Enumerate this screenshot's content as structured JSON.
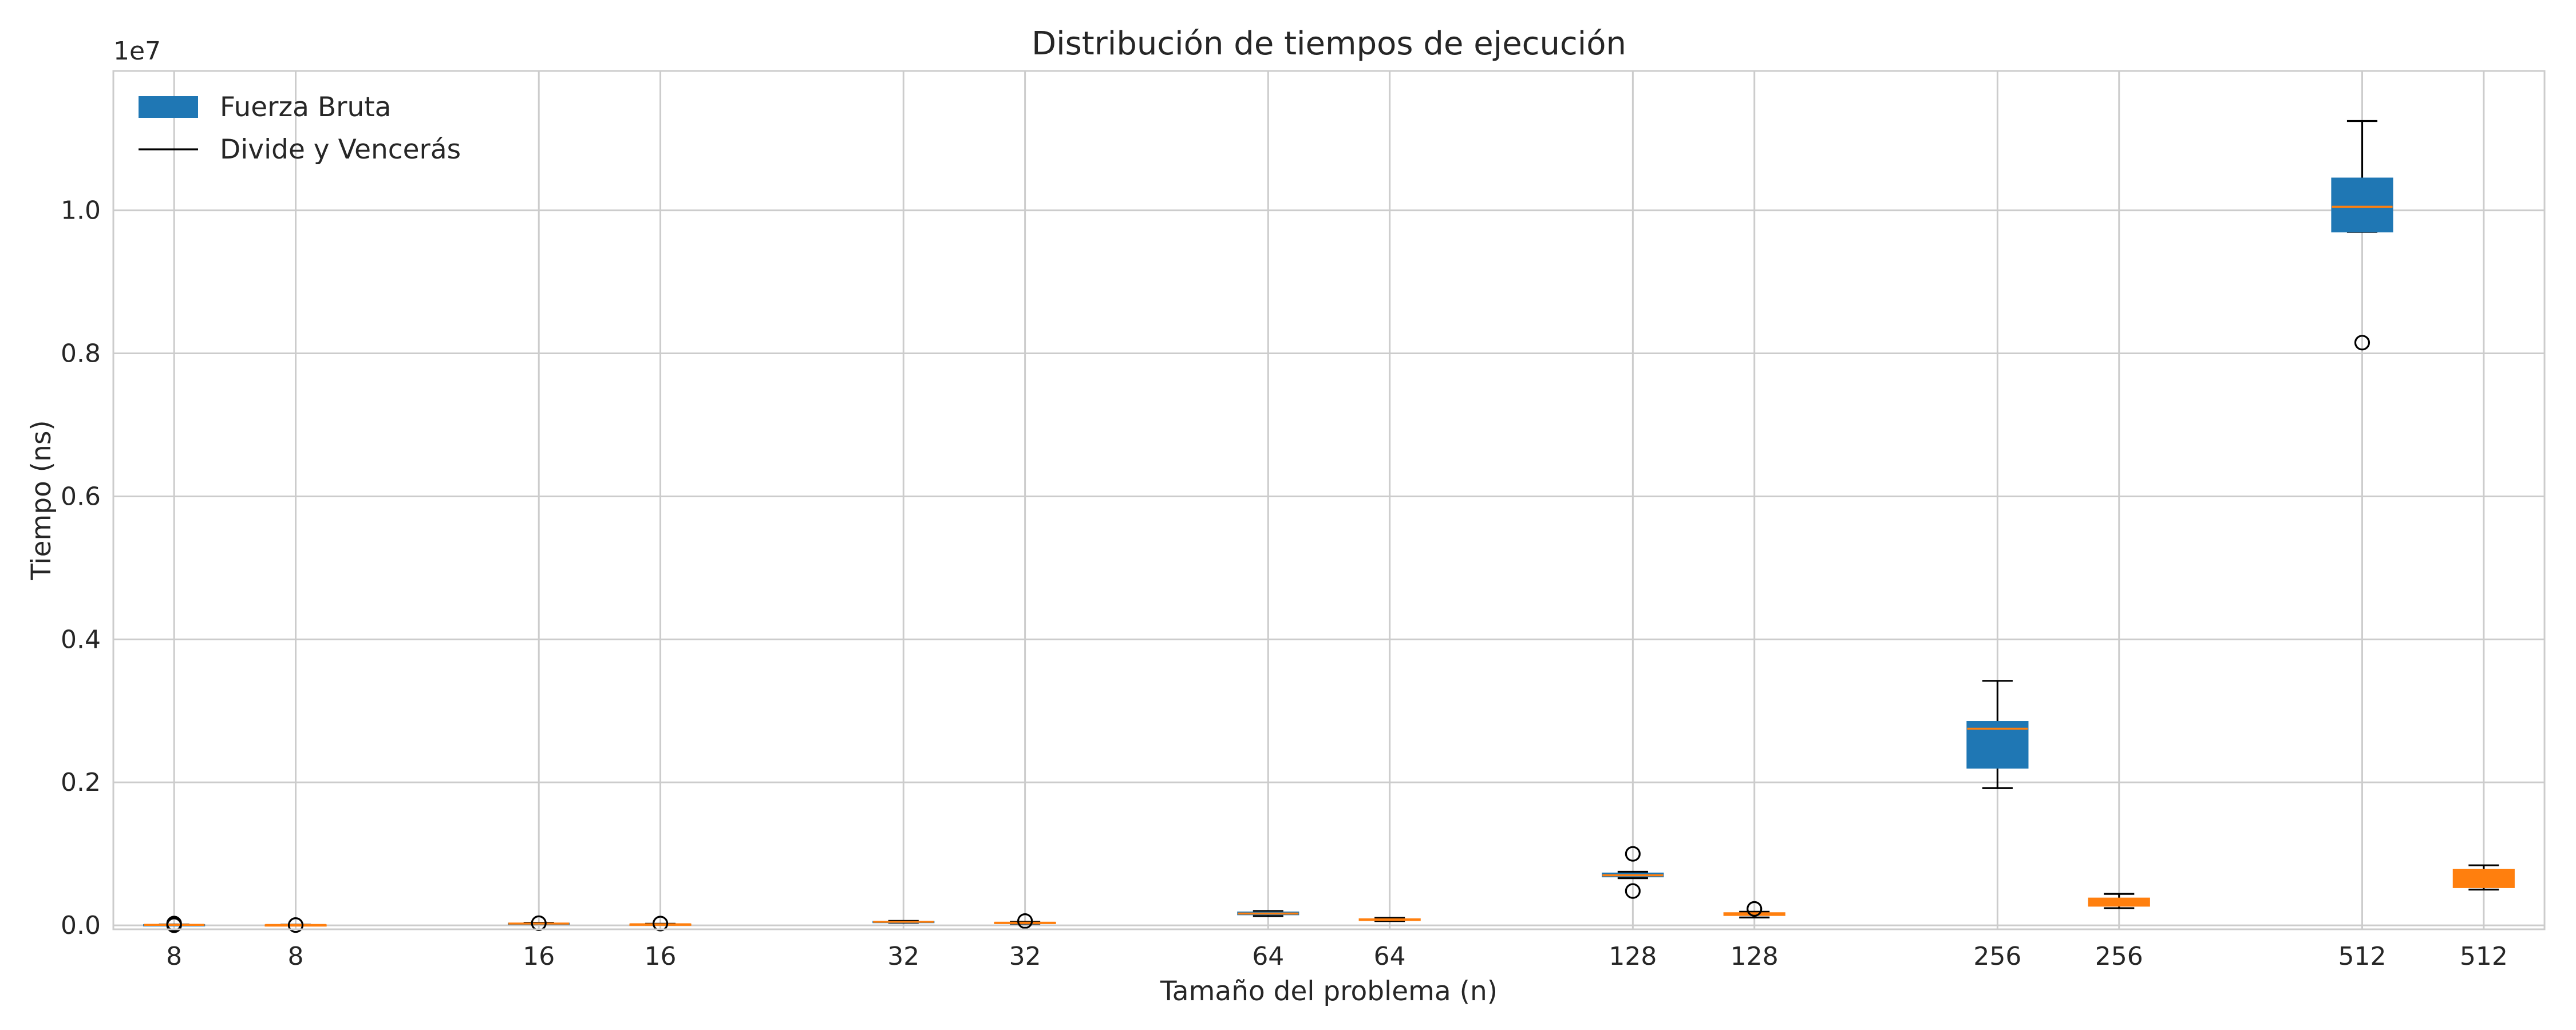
{
  "chart_data": {
    "type": "box",
    "title": "Distribución de tiempos de ejecución",
    "xlabel": "Tamaño del problema (n)",
    "ylabel": "Tiempo (ns)",
    "y_offset_label": "1e7",
    "y_multiplier": 10000000,
    "ylim": [
      -55000,
      11950000
    ],
    "yticks": [
      0,
      2000000,
      4000000,
      6000000,
      8000000,
      10000000
    ],
    "ytick_labels": [
      "0.0",
      "0.2",
      "0.4",
      "0.6",
      "0.8",
      "1.0"
    ],
    "grid": true,
    "legend_position": "top-left",
    "legend": [
      {
        "label": "Fuerza Bruta",
        "kind": "patch",
        "color": "#1f77b4"
      },
      {
        "label": "Divide y Vencerás",
        "kind": "line",
        "color": "#000000"
      }
    ],
    "median_color": "#ff7f0e",
    "series": [
      {
        "name": "Fuerza Bruta",
        "color": "#1f77b4",
        "boxes": [
          {
            "x": 1,
            "label": "8",
            "q1": 5000,
            "median": 7000,
            "q3": 9000,
            "whisker_low": 3000,
            "whisker_high": 12000,
            "outliers": [
              25000,
              2000
            ]
          },
          {
            "x": 4,
            "label": "16",
            "q1": 22000,
            "median": 25000,
            "q3": 29000,
            "whisker_low": 18000,
            "whisker_high": 35000,
            "outliers": [
              30000
            ]
          },
          {
            "x": 7,
            "label": "32",
            "q1": 45000,
            "median": 50000,
            "q3": 55000,
            "whisker_low": 38000,
            "whisker_high": 62000,
            "outliers": []
          },
          {
            "x": 10,
            "label": "64",
            "q1": 150000,
            "median": 165000,
            "q3": 185000,
            "whisker_low": 130000,
            "whisker_high": 200000,
            "outliers": []
          },
          {
            "x": 13,
            "label": "128",
            "q1": 680000,
            "median": 700000,
            "q3": 730000,
            "whisker_low": 660000,
            "whisker_high": 750000,
            "outliers": [
              1000000,
              480000
            ]
          },
          {
            "x": 16,
            "label": "256",
            "q1": 2200000,
            "median": 2750000,
            "q3": 2850000,
            "whisker_low": 1920000,
            "whisker_high": 3420000,
            "outliers": []
          },
          {
            "x": 19,
            "label": "512",
            "q1": 9700000,
            "median": 10050000,
            "q3": 10450000,
            "whisker_low": 9700000,
            "whisker_high": 11250000,
            "outliers": [
              8150000
            ]
          }
        ]
      },
      {
        "name": "Divide y Vencerás",
        "color": "#ff7f0e",
        "boxes": [
          {
            "x": 2,
            "label": "8",
            "q1": 4000,
            "median": 5000,
            "q3": 7000,
            "whisker_low": 3000,
            "whisker_high": 9000,
            "outliers": [
              4000
            ]
          },
          {
            "x": 5,
            "label": "16",
            "q1": 12000,
            "median": 15000,
            "q3": 18000,
            "whisker_low": 9000,
            "whisker_high": 22000,
            "outliers": [
              25000
            ]
          },
          {
            "x": 8,
            "label": "32",
            "q1": 30000,
            "median": 36000,
            "q3": 42000,
            "whisker_low": 25000,
            "whisker_high": 50000,
            "outliers": [
              60000
            ]
          },
          {
            "x": 11,
            "label": "64",
            "q1": 70000,
            "median": 80000,
            "q3": 90000,
            "whisker_low": 60000,
            "whisker_high": 105000,
            "outliers": []
          },
          {
            "x": 14,
            "label": "128",
            "q1": 140000,
            "median": 155000,
            "q3": 175000,
            "whisker_low": 110000,
            "whisker_high": 190000,
            "outliers": [
              230000
            ]
          },
          {
            "x": 17,
            "label": "256",
            "q1": 270000,
            "median": 330000,
            "q3": 380000,
            "whisker_low": 240000,
            "whisker_high": 440000,
            "outliers": []
          },
          {
            "x": 20,
            "label": "512",
            "q1": 530000,
            "median": 650000,
            "q3": 780000,
            "whisker_low": 500000,
            "whisker_high": 840000,
            "outliers": []
          }
        ]
      }
    ]
  }
}
